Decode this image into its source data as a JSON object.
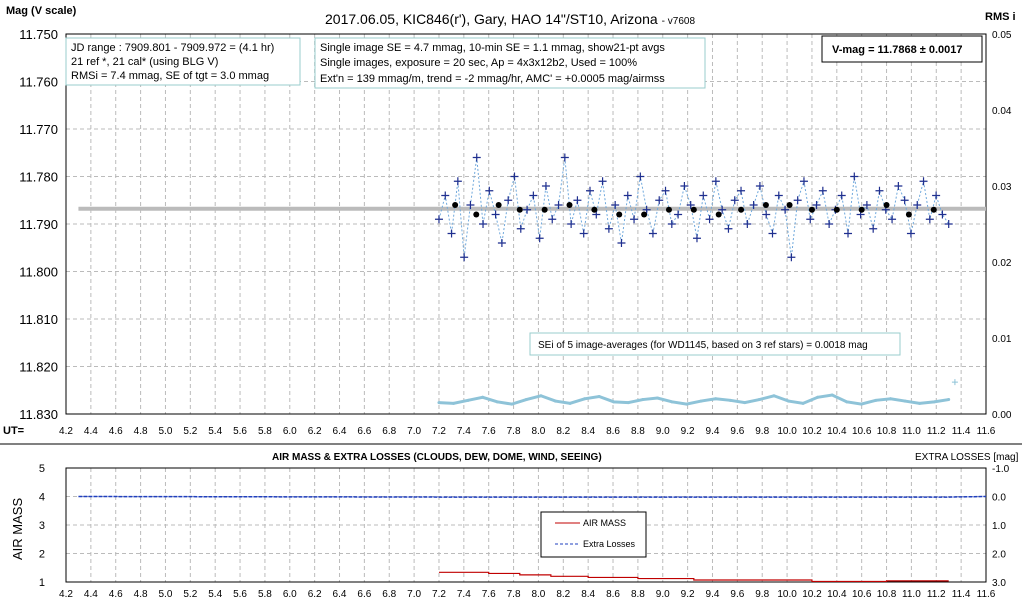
{
  "top": {
    "title": "2017.06.05,  KIC846(r'),  Gary,  HAO  14\"/ST10,  Arizona",
    "version": "- v7608",
    "ylabel": "Mag (V scale)",
    "y2label": "RMS i",
    "xlabel": "UT=",
    "info1": [
      "JD range : 7909.801 - 7909.972 = (4.1 hr)",
      "21 ref *, 21 cal* (using BLG V)",
      "RMSi = 7.4 mmag, SE of tgt = 3.0 mmag"
    ],
    "info2": [
      "Single image SE = 4.7 mmag, 10-min SE = 1.1 mmag, show21-pt avgs",
      "Single images, exposure = 20 sec, Ap = 4x3x12b2, Used = 100%",
      "Ext'n = 139 mmag/m, trend = -2 mmag/hr, AMC' = +0.0005 mag/airmss"
    ],
    "vmag": "V-mag = 11.7868 ± 0.0017",
    "sei": "SEi of 5 image-averages (for WD1145, based on 3 ref stars) = 0.0018 mag"
  },
  "bottom": {
    "title": "AIR MASS & EXTRA LOSSES (CLOUDS, DEW, DOME, WIND, SEEING)",
    "ylabel": "AIR MASS",
    "y2label": "EXTRA LOSSES [mag]",
    "legend": [
      "AIR MASS",
      "Extra Losses"
    ]
  },
  "chart_data": [
    {
      "type": "scatter",
      "xlim": [
        4.2,
        11.6
      ],
      "ylim": [
        11.75,
        11.83
      ],
      "y_inverted": true,
      "y2lim": [
        0,
        0.05
      ],
      "grid": true,
      "x_ticks": [
        "4.2",
        "4.4",
        "4.6",
        "4.8",
        "5.0",
        "5.2",
        "5.4",
        "5.6",
        "5.8",
        "6.0",
        "6.2",
        "6.4",
        "6.6",
        "6.8",
        "7.0",
        "7.2",
        "7.4",
        "7.6",
        "7.8",
        "8.0",
        "8.2",
        "8.4",
        "8.6",
        "8.8",
        "9.0",
        "9.2",
        "9.4",
        "9.6",
        "9.8",
        "10.0",
        "10.2",
        "10.4",
        "10.6",
        "10.8",
        "11.0",
        "11.2",
        "11.4",
        "11.6"
      ],
      "y_ticks": [
        "11.750",
        "11.760",
        "11.770",
        "11.780",
        "11.790",
        "11.800",
        "11.810",
        "11.820",
        "11.830"
      ],
      "y2_ticks": [
        "0.05",
        "0.04",
        "0.03",
        "0.02",
        "0.01",
        "0.00"
      ],
      "mean_mag": 11.7868,
      "single_x_range": [
        7.2,
        11.3
      ],
      "single_mags": [
        11.789,
        11.784,
        11.792,
        11.781,
        11.797,
        11.786,
        11.776,
        11.79,
        11.783,
        11.788,
        11.794,
        11.785,
        11.78,
        11.791,
        11.787,
        11.784,
        11.793,
        11.782,
        11.789,
        11.786,
        11.776,
        11.79,
        11.785,
        11.792,
        11.783,
        11.788,
        11.781,
        11.791,
        11.786,
        11.794,
        11.784,
        11.789,
        11.78,
        11.787,
        11.792,
        11.785,
        11.783,
        11.79,
        11.788,
        11.782,
        11.786,
        11.793,
        11.784,
        11.789,
        11.781,
        11.787,
        11.791,
        11.785,
        11.783,
        11.79,
        11.786,
        11.782,
        11.788,
        11.792,
        11.784,
        11.787,
        11.797,
        11.785,
        11.781,
        11.789,
        11.786,
        11.783,
        11.79,
        11.787,
        11.784,
        11.792,
        11.78,
        11.788,
        11.786,
        11.791,
        11.783,
        11.787,
        11.789,
        11.782,
        11.785,
        11.792,
        11.786,
        11.781,
        11.789,
        11.784,
        11.788,
        11.79
      ],
      "avg_x": [
        7.33,
        7.5,
        7.68,
        7.85,
        8.05,
        8.25,
        8.45,
        8.65,
        8.85,
        9.05,
        9.25,
        9.45,
        9.63,
        9.83,
        10.02,
        10.2,
        10.4,
        10.6,
        10.8,
        10.98,
        11.18
      ],
      "avg_mag": [
        11.786,
        11.788,
        11.786,
        11.787,
        11.787,
        11.786,
        11.787,
        11.788,
        11.788,
        11.787,
        11.787,
        11.788,
        11.787,
        11.786,
        11.786,
        11.787,
        11.787,
        11.787,
        11.786,
        11.788,
        11.787
      ],
      "rms_x_range": [
        7.2,
        11.3
      ],
      "rms": [
        0.0015,
        0.0014,
        0.0018,
        0.0022,
        0.0016,
        0.0013,
        0.0019,
        0.0024,
        0.0017,
        0.0014,
        0.002,
        0.0023,
        0.0016,
        0.0015,
        0.0019,
        0.0021,
        0.0016,
        0.0013,
        0.0017,
        0.002,
        0.0018,
        0.0015,
        0.0019,
        0.0024,
        0.0017,
        0.0014,
        0.0022,
        0.0025,
        0.0016,
        0.0013,
        0.0018,
        0.002,
        0.0017,
        0.0014,
        0.0016,
        0.0019
      ],
      "rms_outlier": [
        11.35,
        0.0042
      ]
    },
    {
      "type": "line",
      "xlim": [
        4.2,
        11.6
      ],
      "ylim": [
        1,
        5
      ],
      "y2lim": [
        -1.0,
        3.0
      ],
      "y_ticks": [
        "1",
        "2",
        "3",
        "4",
        "5"
      ],
      "y2_ticks": [
        "-1.0",
        "0.0",
        "1.0",
        "2.0",
        "3.0"
      ],
      "legend_position": "center",
      "series": [
        {
          "name": "AIR MASS",
          "color": "#c00000",
          "x": [
            7.2,
            7.6,
            7.85,
            8.1,
            8.4,
            8.8,
            9.25,
            10.2,
            10.8,
            11.3
          ],
          "y": [
            1.34,
            1.3,
            1.25,
            1.2,
            1.16,
            1.12,
            1.07,
            1.02,
            1.04,
            1.04
          ]
        },
        {
          "name": "Extra Losses",
          "color": "#1f3fbf",
          "x": [
            4.3,
            7.2,
            11.3,
            11.6
          ],
          "y": [
            0.0,
            0.02,
            0.02,
            0.0
          ]
        }
      ]
    }
  ]
}
